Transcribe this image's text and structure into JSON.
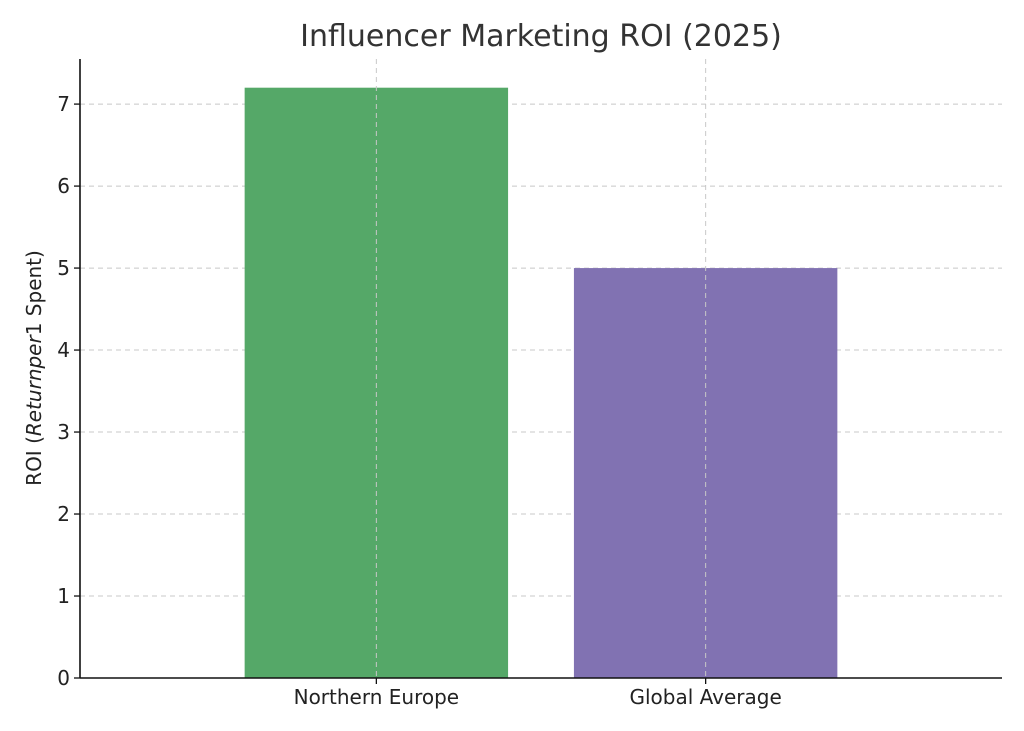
{
  "chart_data": {
    "type": "bar",
    "title": "Influencer Marketing ROI (2025)",
    "xlabel": "",
    "ylabel": "ROI ($Return per $1 Spent)",
    "ylabel_parts": {
      "prefix": "ROI (",
      "italic": "Returnper",
      "suffix": "1 Spent)"
    },
    "categories": [
      "Northern Europe",
      "Global Average"
    ],
    "values": [
      7.2,
      5.0
    ],
    "colors": [
      "#55a868",
      "#8172b2"
    ],
    "ylim": [
      0,
      7.55
    ],
    "yticks": [
      0,
      1,
      2,
      3,
      4,
      5,
      6,
      7
    ],
    "grid": true,
    "legend": "none"
  }
}
